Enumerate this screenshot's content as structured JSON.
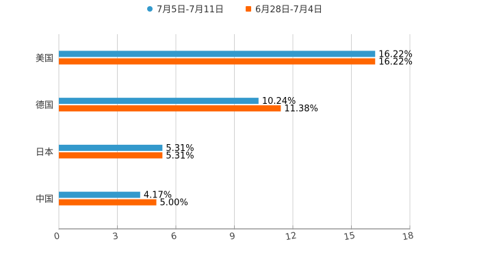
{
  "chart_data": {
    "type": "bar",
    "orientation": "horizontal",
    "title": "",
    "xlabel": "",
    "ylabel": "",
    "categories": [
      "美国",
      "德国",
      "日本",
      "中国"
    ],
    "series": [
      {
        "name": "7月5日-7月11日",
        "color": "#3399cc",
        "values": [
          16.22,
          10.24,
          5.31,
          4.17
        ],
        "labels": [
          "16.22%",
          "10.24%",
          "5.31%",
          "4.17%"
        ]
      },
      {
        "name": "6月28日-7月4日",
        "color": "#ff6600",
        "values": [
          16.22,
          11.38,
          5.31,
          5.0
        ],
        "labels": [
          "16.22%",
          "11.38%",
          "5.31%",
          "5.00%"
        ]
      }
    ],
    "xlim": [
      0,
      18
    ],
    "xticks": [
      0,
      3,
      6,
      9,
      12,
      15,
      18
    ],
    "xtick_labels": [
      "0",
      "3",
      "6",
      "9",
      "12",
      "15",
      "18"
    ],
    "grid": true,
    "legend": "top-center"
  }
}
